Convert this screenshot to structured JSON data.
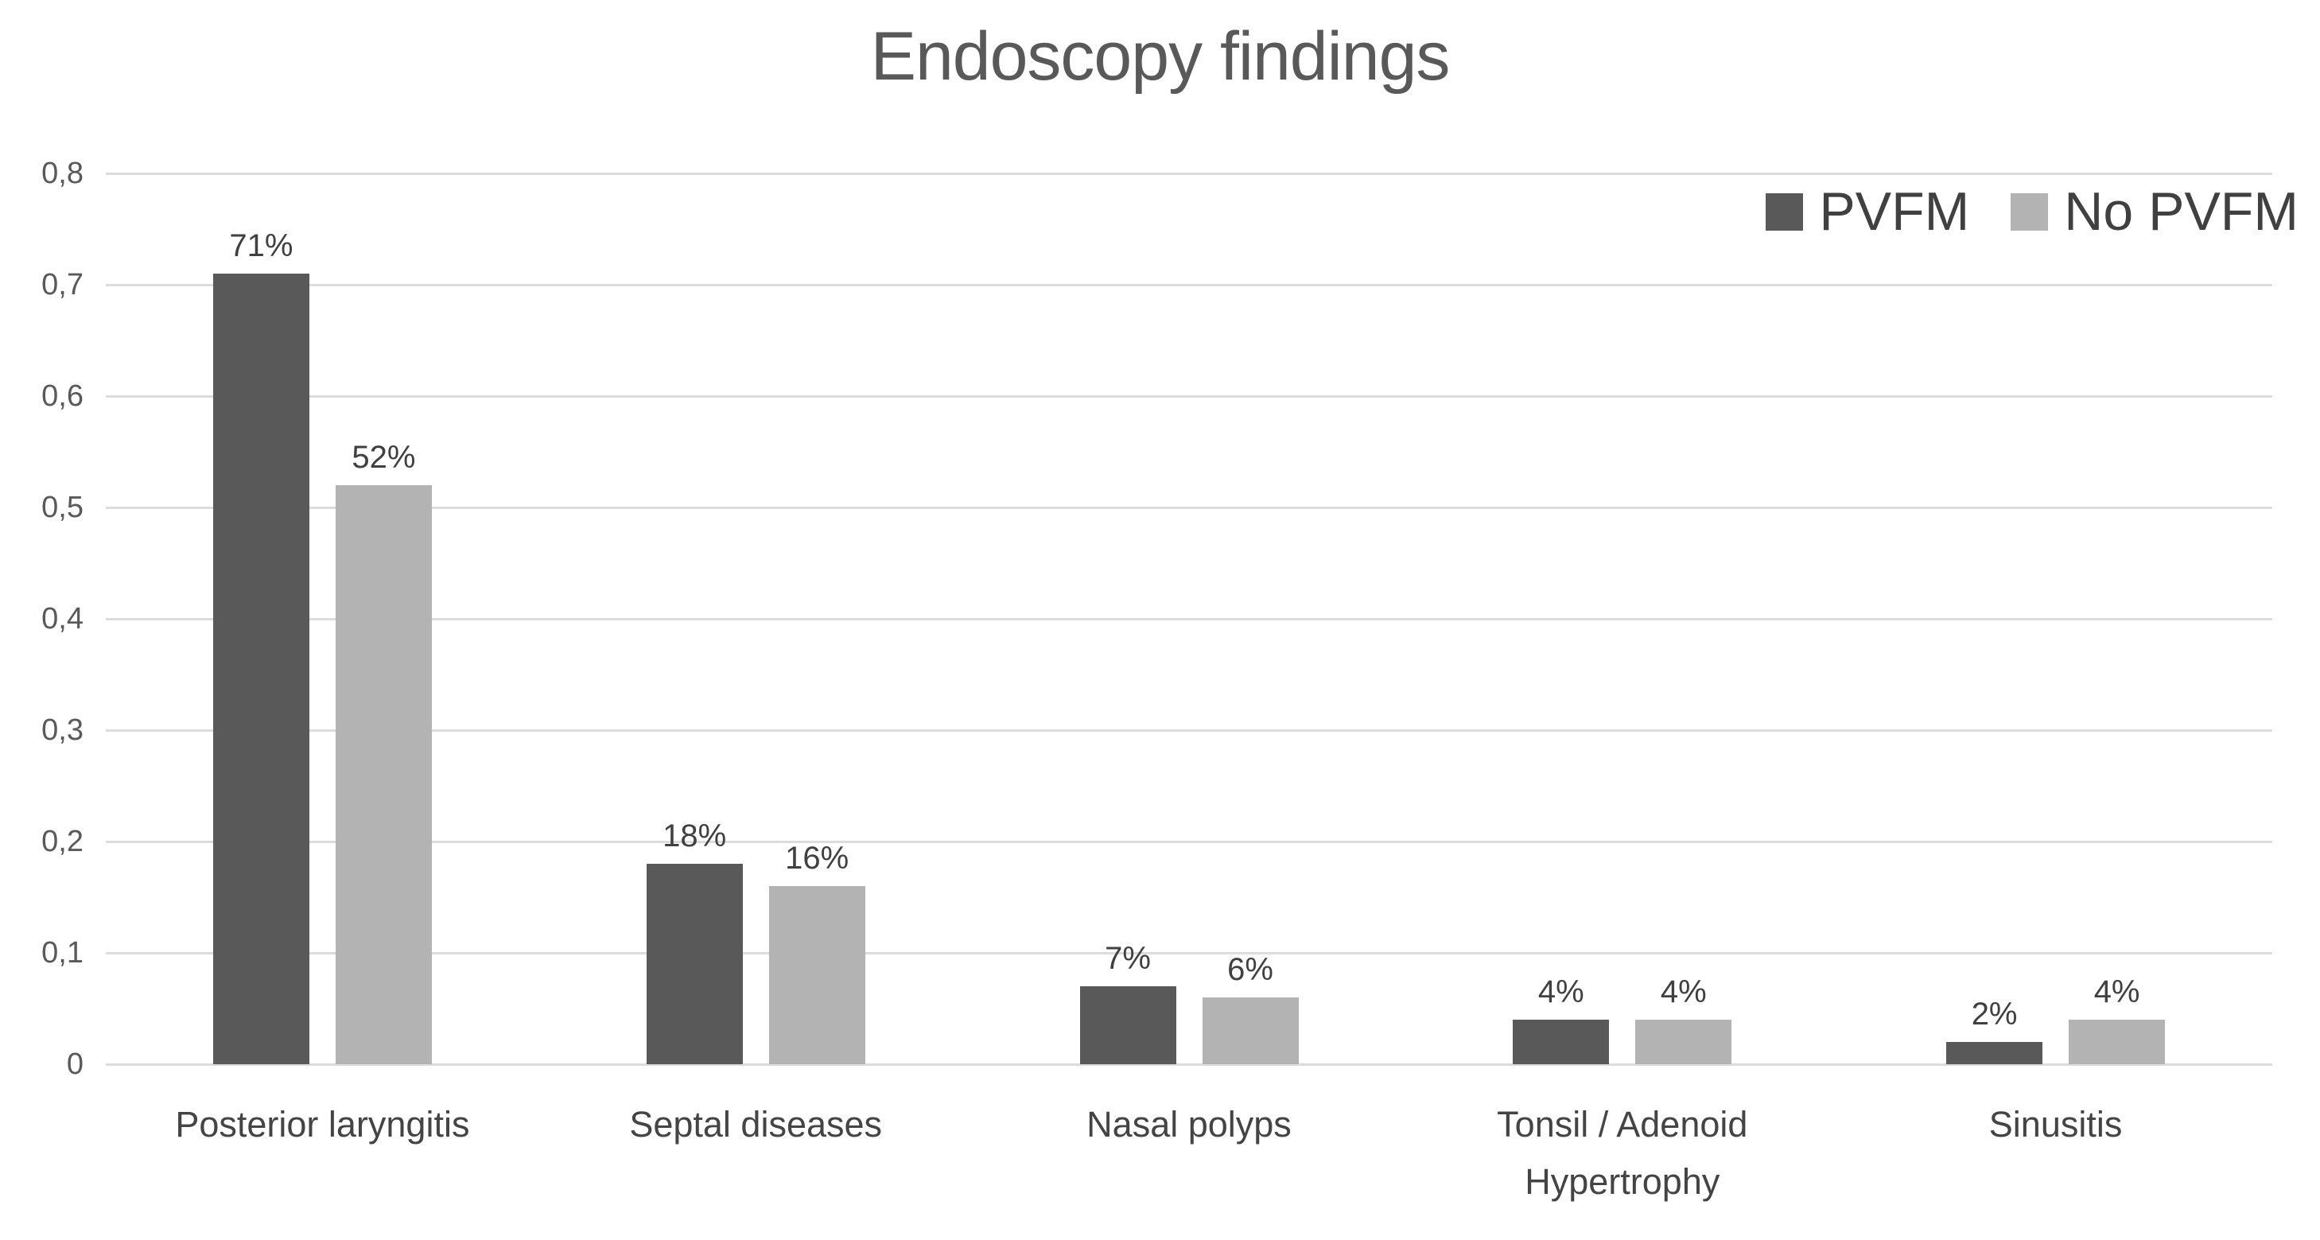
{
  "title": "Endoscopy findings",
  "legend": {
    "items": [
      {
        "label": "PVFM",
        "color": "#595959"
      },
      {
        "label": "No PVFM",
        "color": "#b3b3b3"
      }
    ]
  },
  "chart_data": {
    "type": "bar",
    "title": "Endoscopy findings",
    "categories": [
      "Posterior laryngitis",
      "Septal diseases",
      "Nasal polyps",
      "Tonsil / Adenoid Hypertrophy",
      "Sinusitis"
    ],
    "series": [
      {
        "name": "PVFM",
        "color": "#595959",
        "values": [
          0.71,
          0.18,
          0.07,
          0.04,
          0.02
        ],
        "data_labels": [
          "71%",
          "18%",
          "7%",
          "4%",
          "2%"
        ]
      },
      {
        "name": "No PVFM",
        "color": "#b3b3b3",
        "values": [
          0.52,
          0.16,
          0.06,
          0.04,
          0.04
        ],
        "data_labels": [
          "52%",
          "16%",
          "6%",
          "4%",
          "4%"
        ]
      }
    ],
    "y_axis": {
      "min": 0,
      "max": 0.8,
      "step": 0.1,
      "decimal_separator": ",",
      "ticks": [
        {
          "value": 0.0,
          "label": "0"
        },
        {
          "value": 0.1,
          "label": "0,1"
        },
        {
          "value": 0.2,
          "label": "0,2"
        },
        {
          "value": 0.3,
          "label": "0,3"
        },
        {
          "value": 0.4,
          "label": "0,4"
        },
        {
          "value": 0.5,
          "label": "0,5"
        },
        {
          "value": 0.6,
          "label": "0,6"
        },
        {
          "value": 0.7,
          "label": "0,7"
        },
        {
          "value": 0.8,
          "label": "0,8"
        }
      ]
    },
    "grid": true,
    "legend_position": "top-right",
    "colors": {
      "background": "#ffffff",
      "gridline": "#dcdcdc",
      "title_text": "#595959",
      "axis_text": "#595959",
      "label_text": "#404040"
    }
  }
}
